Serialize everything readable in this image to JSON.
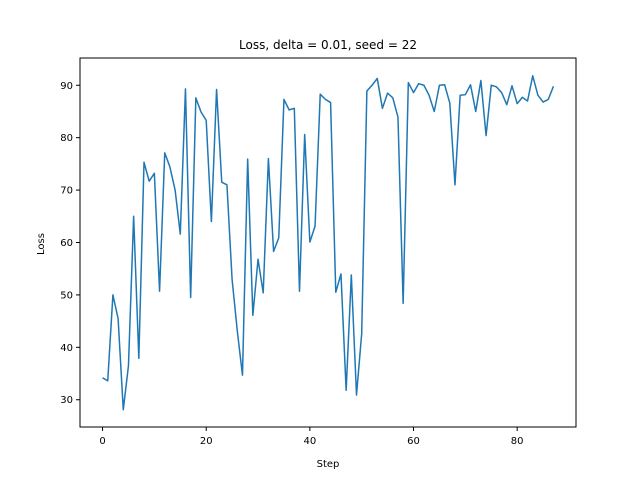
{
  "chart_data": {
    "type": "line",
    "title": "Loss, delta = 0.01, seed = 22",
    "xlabel": "Step",
    "ylabel": "Loss",
    "xlim": [
      -4.35,
      91.35
    ],
    "ylim": [
      24.8,
      95.2
    ],
    "xticks": [
      0,
      20,
      40,
      60,
      80
    ],
    "yticks": [
      30,
      40,
      50,
      60,
      70,
      80,
      90
    ],
    "grid": false,
    "series": [
      {
        "color": "#1f77b4",
        "x": [
          0,
          1,
          2,
          3,
          4,
          5,
          6,
          7,
          8,
          9,
          10,
          11,
          12,
          13,
          14,
          15,
          16,
          17,
          18,
          19,
          20,
          21,
          22,
          23,
          24,
          25,
          26,
          27,
          28,
          29,
          30,
          31,
          32,
          33,
          34,
          35,
          36,
          37,
          38,
          39,
          40,
          41,
          42,
          43,
          44,
          45,
          46,
          47,
          48,
          49,
          50,
          51,
          52,
          53,
          54,
          55,
          56,
          57,
          58,
          59,
          60,
          61,
          62,
          63,
          64,
          65,
          66,
          67,
          68,
          69,
          70,
          71,
          72,
          73,
          74,
          75,
          76,
          77,
          78,
          79,
          80,
          81,
          82,
          83,
          84,
          85,
          86,
          87
        ],
        "y": [
          34.2,
          33.6,
          50.0,
          45.5,
          28.1,
          36.5,
          65.0,
          37.9,
          75.3,
          71.7,
          73.2,
          50.7,
          77.1,
          74.4,
          70.0,
          61.6,
          89.3,
          49.5,
          87.6,
          84.9,
          83.3,
          64.0,
          89.2,
          71.5,
          71.0,
          52.9,
          43.1,
          34.7,
          75.9,
          46.1,
          56.8,
          50.4,
          76.0,
          58.3,
          60.9,
          87.3,
          85.3,
          85.6,
          50.7,
          80.6,
          60.1,
          63.1,
          88.3,
          87.3,
          86.7,
          50.5,
          54.0,
          31.8,
          53.8,
          30.9,
          42.6,
          88.9,
          90.0,
          91.3,
          85.6,
          88.5,
          87.6,
          83.9,
          48.4,
          90.5,
          88.6,
          90.3,
          90.0,
          88.1,
          85.0,
          90.0,
          90.1,
          86.6,
          71.0,
          88.1,
          88.2,
          90.1,
          85.0,
          90.9,
          80.4,
          90.0,
          89.7,
          88.6,
          86.3,
          89.9,
          86.5,
          87.7,
          87.0,
          91.8,
          88.1,
          86.8,
          87.3,
          89.8
        ]
      }
    ]
  }
}
